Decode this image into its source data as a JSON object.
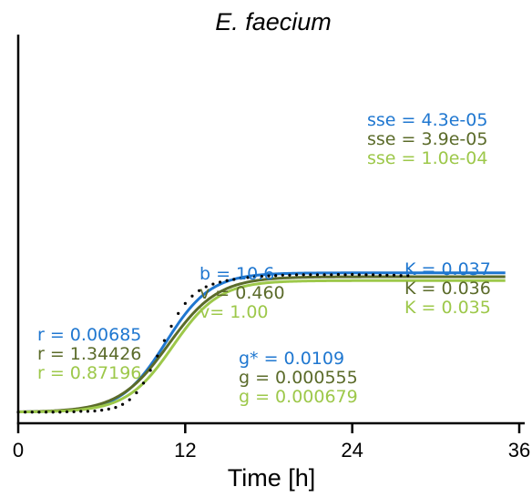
{
  "chart_data": {
    "type": "line",
    "title": "E. faecium",
    "xlabel": "Time [h]",
    "ylabel": "",
    "xlim": [
      0,
      36
    ],
    "ylim": [
      0,
      0.1
    ],
    "xticks": [
      "0",
      "12",
      "24",
      "36"
    ],
    "yticks_visible": false,
    "grid": false,
    "series": [
      {
        "kind": "scatter",
        "color": "#000000",
        "x": [
          0,
          0.5,
          1,
          1.5,
          2,
          2.5,
          3,
          3.5,
          4,
          4.5,
          5,
          5.5,
          6,
          6.5,
          7,
          7.5,
          8,
          8.5,
          9,
          9.5,
          10,
          10.5,
          11,
          11.5,
          12,
          12.5,
          13,
          13.5,
          14,
          14.5,
          15,
          15.5,
          16,
          16.5,
          17,
          17.5,
          18,
          18.5,
          19,
          19.5,
          20,
          20.5,
          21,
          21.5,
          22,
          22.5,
          23,
          23.5,
          24,
          24.5,
          25,
          25.5,
          26,
          26.5,
          27,
          27.5,
          28
        ],
        "y": [
          0.001,
          0.001,
          0.001,
          0.001,
          0.001,
          0.001,
          0.001,
          0.0011,
          0.0011,
          0.0012,
          0.0012,
          0.0013,
          0.0015,
          0.0018,
          0.0022,
          0.003,
          0.0042,
          0.006,
          0.0085,
          0.0118,
          0.0155,
          0.0195,
          0.0232,
          0.0265,
          0.0291,
          0.031,
          0.0324,
          0.0334,
          0.0341,
          0.0346,
          0.035,
          0.0353,
          0.0356,
          0.0358,
          0.036,
          0.0361,
          0.0362,
          0.0363,
          0.0364,
          0.0364,
          0.0365,
          0.0365,
          0.0365,
          0.0365,
          0.0365,
          0.0365,
          0.0366,
          0.0365,
          0.0366,
          0.0365,
          0.0365,
          0.0365,
          0.0364,
          0.0364,
          0.0364,
          0.0363,
          0.0363
        ]
      },
      {
        "kind": "line",
        "model": "A",
        "color": "#1f77d0",
        "width": 3,
        "K": 0.037,
        "y0": 0.001,
        "r": 0.00685,
        "b": 10.6,
        "g_star": 0.0109,
        "sse": "4.3e-05"
      },
      {
        "kind": "line",
        "model": "B",
        "color": "#5b6b2a",
        "width": 3,
        "K": 0.036,
        "y0": 0.001,
        "r": 1.34426,
        "v": 0.46,
        "g": 0.000555,
        "sse": "3.9e-05"
      },
      {
        "kind": "line",
        "model": "C",
        "color": "#9dc84a",
        "width": 3,
        "K": 0.035,
        "y0": 0.001,
        "r": 0.87196,
        "v": 1.0,
        "g": 0.000679,
        "sse": "1.0e-04"
      }
    ],
    "annotations": {
      "sse": [
        {
          "text": "sse = 4.3e-05",
          "color": "#1f77d0"
        },
        {
          "text": "sse = 3.9e-05",
          "color": "#5b6b2a"
        },
        {
          "text": "sse = 1.0e-04",
          "color": "#9dc84a"
        }
      ],
      "k": [
        {
          "text": "K = 0.037",
          "color": "#1f77d0"
        },
        {
          "text": "K = 0.036",
          "color": "#5b6b2a"
        },
        {
          "text": "K = 0.035",
          "color": "#9dc84a"
        }
      ],
      "bv": [
        {
          "text": "b = 10.6",
          "color": "#1f77d0"
        },
        {
          "text": "v = 0.460",
          "color": "#5b6b2a"
        },
        {
          "text": "v= 1.00",
          "color": "#9dc84a"
        }
      ],
      "r": [
        {
          "text": "r = 0.00685",
          "color": "#1f77d0"
        },
        {
          "text": "r = 1.34426",
          "color": "#5b6b2a"
        },
        {
          "text": "r = 0.87196",
          "color": "#9dc84a"
        }
      ],
      "g": [
        {
          "text": "g* = 0.0109",
          "color": "#1f77d0"
        },
        {
          "text": "g = 0.000555",
          "color": "#5b6b2a"
        },
        {
          "text": "g = 0.000679",
          "color": "#9dc84a"
        }
      ]
    }
  }
}
